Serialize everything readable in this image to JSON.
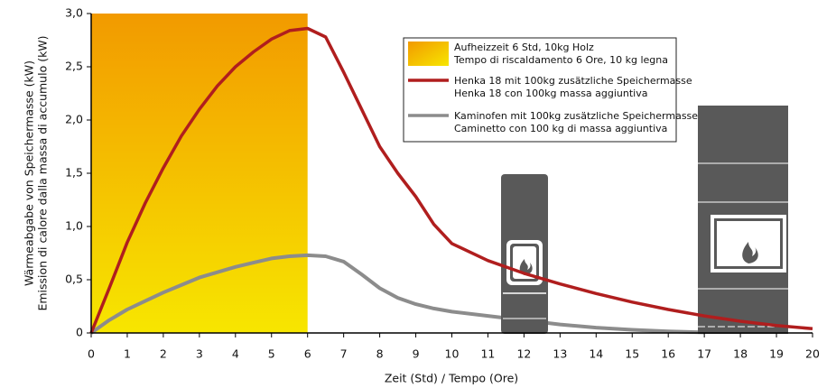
{
  "chart_data": {
    "type": "line",
    "xlabel": "Zeit (Std) / Tempo (Ore)",
    "ylabel": [
      "Wärmeabgabe von Speichermasse (kW)",
      "Emission di calore dalla massa di accumulo (kW)"
    ],
    "xlim": [
      0,
      20
    ],
    "ylim": [
      0,
      3
    ],
    "xticks": [
      0,
      1,
      2,
      3,
      4,
      5,
      6,
      7,
      8,
      9,
      10,
      11,
      12,
      13,
      14,
      15,
      16,
      17,
      18,
      19,
      20
    ],
    "yticks": [
      0,
      {
        "value": 0.5,
        "label": "0,5"
      },
      {
        "value": 1,
        "label": "1,0"
      },
      {
        "value": 1.5,
        "label": "1,5"
      },
      {
        "value": 2,
        "label": "2,0"
      },
      {
        "value": 2.5,
        "label": "2,5"
      },
      {
        "value": 3,
        "label": "3,0"
      }
    ],
    "y_minor_grid": [
      0.25,
      0.75,
      1.25,
      1.75,
      2.25,
      2.75
    ],
    "grid": true,
    "shaded_region": {
      "x": [
        0,
        6
      ],
      "colors": [
        "#f29a00",
        "#f7e600"
      ],
      "name": [
        "Aufheizzeit 6 Std, 10kg Holz",
        "Tempo di riscaldamento 6 Ore, 10 kg legna"
      ]
    },
    "series": [
      {
        "name": [
          "Henka 18 mit 100kg zusätzliche Speichermasse",
          "Henka 18 con 100kg massa aggiuntiva"
        ],
        "color": "#b01e1e",
        "x": [
          0,
          0.5,
          1,
          1.5,
          2,
          2.5,
          3,
          3.5,
          4,
          4.5,
          5,
          5.5,
          6,
          6.5,
          7,
          7.5,
          8,
          8.5,
          9,
          9.5,
          10,
          11,
          12,
          13,
          14,
          15,
          16,
          17,
          18,
          19,
          20
        ],
        "values": [
          0,
          0.42,
          0.85,
          1.22,
          1.55,
          1.85,
          2.1,
          2.32,
          2.5,
          2.64,
          2.76,
          2.84,
          2.86,
          2.78,
          2.45,
          2.1,
          1.75,
          1.5,
          1.28,
          1.02,
          0.84,
          0.68,
          0.56,
          0.46,
          0.37,
          0.29,
          0.22,
          0.16,
          0.11,
          0.07,
          0.04
        ]
      },
      {
        "name": [
          "Kaminofen mit 100kg zusätzliche Speichermasse",
          "Caminetto con 100 kg di massa aggiuntiva"
        ],
        "color": "#8c8c8c",
        "x": [
          0,
          0.5,
          1,
          1.5,
          2,
          2.5,
          3,
          3.5,
          4,
          4.5,
          5,
          5.5,
          6,
          6.5,
          7,
          7.5,
          8,
          8.5,
          9,
          9.5,
          10,
          11,
          12,
          13,
          14,
          15,
          16,
          17
        ],
        "values": [
          0,
          0.12,
          0.22,
          0.3,
          0.38,
          0.45,
          0.52,
          0.57,
          0.62,
          0.66,
          0.7,
          0.72,
          0.73,
          0.72,
          0.67,
          0.55,
          0.42,
          0.33,
          0.27,
          0.23,
          0.2,
          0.16,
          0.12,
          0.08,
          0.05,
          0.03,
          0.015,
          0.005
        ]
      }
    ]
  }
}
